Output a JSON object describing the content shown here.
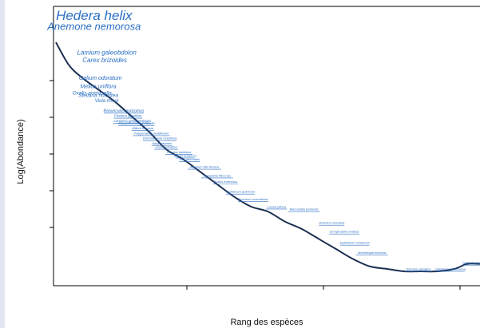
{
  "colors": {
    "curve": "#1b2f52",
    "species_label": "#2a6fc4",
    "axis": "#000000"
  },
  "chart_data": {
    "type": "line",
    "title": "",
    "xlabel": "Rang des espèces",
    "ylabel": "Log(Abondance)",
    "x_ticks_labeled": false,
    "y_ticks_labeled": false,
    "xlim": [
      0,
      100
    ],
    "ylim": [
      0,
      100
    ],
    "series": [
      {
        "x": [
          0,
          3,
          6,
          10,
          14,
          18,
          22,
          26,
          30,
          34,
          38,
          42,
          46,
          50,
          54,
          58,
          62,
          66,
          70,
          74,
          78,
          82,
          86,
          90,
          94,
          97,
          100
        ],
        "y": [
          92,
          83,
          78,
          73,
          68,
          62,
          56,
          49,
          45,
          40,
          35,
          30,
          26,
          24,
          20,
          17,
          13,
          9,
          5,
          2,
          1,
          0,
          0,
          0,
          1,
          3,
          3
        ]
      }
    ],
    "species_labels": [
      {
        "text": "Hedera helix",
        "x": 9.0,
        "y": 101.0,
        "size": 17
      },
      {
        "text": "Anemone nemorosa",
        "x": 9.0,
        "y": 97.0,
        "size": 13
      },
      {
        "text": "Lamium galeobdolon",
        "x": 12.0,
        "y": 87.0,
        "size": 8
      },
      {
        "text": "Carex brizoides",
        "x": 11.5,
        "y": 84.0,
        "size": 8
      },
      {
        "text": "Galium odoratum",
        "x": 10.5,
        "y": 77.0,
        "size": 7
      },
      {
        "text": "Melica uniflora",
        "x": 10.0,
        "y": 73.5,
        "size": 7
      },
      {
        "text": "Oxalis acetosella",
        "x": 8.5,
        "y": 71.0,
        "size": 6.5
      },
      {
        "text": "Stellaria holostea",
        "x": 10.0,
        "y": 70.0,
        "size": 6.5
      },
      {
        "text": "Viola minor",
        "x": 12.0,
        "y": 68.0,
        "size": 6
      },
      {
        "text": "Ranunculus auricomus",
        "x": 16.0,
        "y": 64.0,
        "size": 5
      },
      {
        "text": "Festuca gigantea",
        "x": 17.0,
        "y": 62.0,
        "size": 4.5
      },
      {
        "text": "Lonicera periclymenum",
        "x": 18.0,
        "y": 60.0,
        "size": 4.5
      },
      {
        "text": "Maianthemum bifolium",
        "x": 19.0,
        "y": 59.0,
        "size": 4.5
      },
      {
        "text": "Milium effusum",
        "x": 20.5,
        "y": 57.0,
        "size": 4
      },
      {
        "text": "Polygonatum multiflorum",
        "x": 22.5,
        "y": 55.0,
        "size": 4
      },
      {
        "text": "Deschampsia cespitosa",
        "x": 24.5,
        "y": 53.0,
        "size": 4
      },
      {
        "text": "Ajuga reptans",
        "x": 25.0,
        "y": 51.0,
        "size": 4
      },
      {
        "text": "Carex sylvatica",
        "x": 26.0,
        "y": 49.5,
        "size": 4
      },
      {
        "text": "Circaea lutetiana",
        "x": 29.0,
        "y": 47.5,
        "size": 4
      },
      {
        "text": "Geum urbanum",
        "x": 30.5,
        "y": 46.0,
        "size": 4
      },
      {
        "text": "Poa nemoralis",
        "x": 31.5,
        "y": 44.5,
        "size": 4
      },
      {
        "text": "Athyrium filix-femina",
        "x": 35.0,
        "y": 41.5,
        "size": 4
      },
      {
        "text": "Dryopteris filix-mas",
        "x": 38.0,
        "y": 38.0,
        "size": 4
      },
      {
        "text": "Rubus fruticosus",
        "x": 40.0,
        "y": 35.5,
        "size": 4
      },
      {
        "text": "Hypericum pulchrum",
        "x": 43.5,
        "y": 31.5,
        "size": 4
      },
      {
        "text": "Teucrium scorodonia",
        "x": 46.5,
        "y": 28.5,
        "size": 4
      },
      {
        "text": "Luzula pilosa",
        "x": 52.0,
        "y": 25.5,
        "size": 4
      },
      {
        "text": "Mercurialis perennis",
        "x": 58.5,
        "y": 24.5,
        "size": 4
      },
      {
        "text": "Veronica montana",
        "x": 65.0,
        "y": 19.0,
        "size": 4
      },
      {
        "text": "Scrophularia nodosa",
        "x": 68.0,
        "y": 15.5,
        "size": 4
      },
      {
        "text": "Epilobium montanum",
        "x": 70.5,
        "y": 11.0,
        "size": 4
      },
      {
        "text": "Moehringia trinervia",
        "x": 74.5,
        "y": 7.0,
        "size": 4
      },
      {
        "text": "Stachys sylvatica",
        "x": 85.5,
        "y": 0.5,
        "size": 4
      },
      {
        "text": "Glechoma hederacea",
        "x": 93.0,
        "y": 0.5,
        "size": 4
      },
      {
        "text": "Sanicula europaea",
        "x": 99.0,
        "y": 3.0,
        "size": 4
      }
    ]
  }
}
